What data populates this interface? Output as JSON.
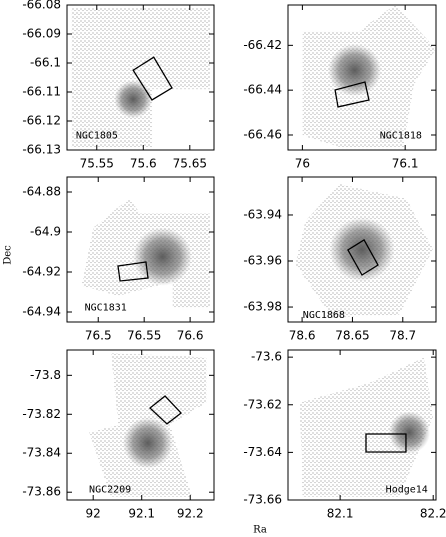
{
  "xlabel": "Ra",
  "ylabel": "Dec",
  "chart_data": [
    {
      "type": "scatter",
      "label": "NGC1805",
      "xlim": [
        75.518,
        75.676
      ],
      "ylim": [
        -66.13,
        -66.08
      ],
      "xticks": [
        75.55,
        75.6,
        75.65
      ],
      "yticks": [
        -66.08,
        -66.09,
        -66.1,
        -66.11,
        -66.12,
        -66.13
      ]
    },
    {
      "type": "scatter",
      "label": "NGC1818",
      "xlim": [
        75.986,
        76.13
      ],
      "ylim": [
        -66.4667,
        -66.402
      ],
      "xticks": [
        76,
        76.1
      ],
      "yticks": [
        -66.42,
        -66.44,
        -66.46
      ]
    },
    {
      "type": "scatter",
      "label": "NGC1831",
      "xlim": [
        76.466,
        76.626
      ],
      "ylim": [
        -64.945,
        -64.8725
      ],
      "xticks": [
        76.5,
        76.55,
        76.6
      ],
      "yticks": [
        -64.88,
        -64.9,
        -64.92,
        -64.94
      ]
    },
    {
      "type": "scatter",
      "label": "NGC1868",
      "xlim": [
        78.586,
        78.733
      ],
      "ylim": [
        -63.9865,
        -63.9235
      ],
      "xticks": [
        78.6,
        78.65,
        78.7
      ],
      "yticks": [
        -63.94,
        -63.96,
        -63.98
      ]
    },
    {
      "type": "scatter",
      "label": "NGC2209",
      "xlim": [
        91.946,
        92.249
      ],
      "ylim": [
        -73.864,
        -73.787
      ],
      "xticks": [
        92,
        92.1,
        92.2
      ],
      "yticks": [
        -73.8,
        -73.82,
        -73.84,
        -73.86
      ]
    },
    {
      "type": "scatter",
      "label": "Hodge14",
      "xlim": [
        82.044,
        82.203
      ],
      "ylim": [
        -73.66,
        -73.597
      ],
      "xticks": [
        82.1,
        82.2
      ],
      "yticks": [
        -73.6,
        -73.62,
        -73.64,
        -73.66
      ]
    }
  ]
}
